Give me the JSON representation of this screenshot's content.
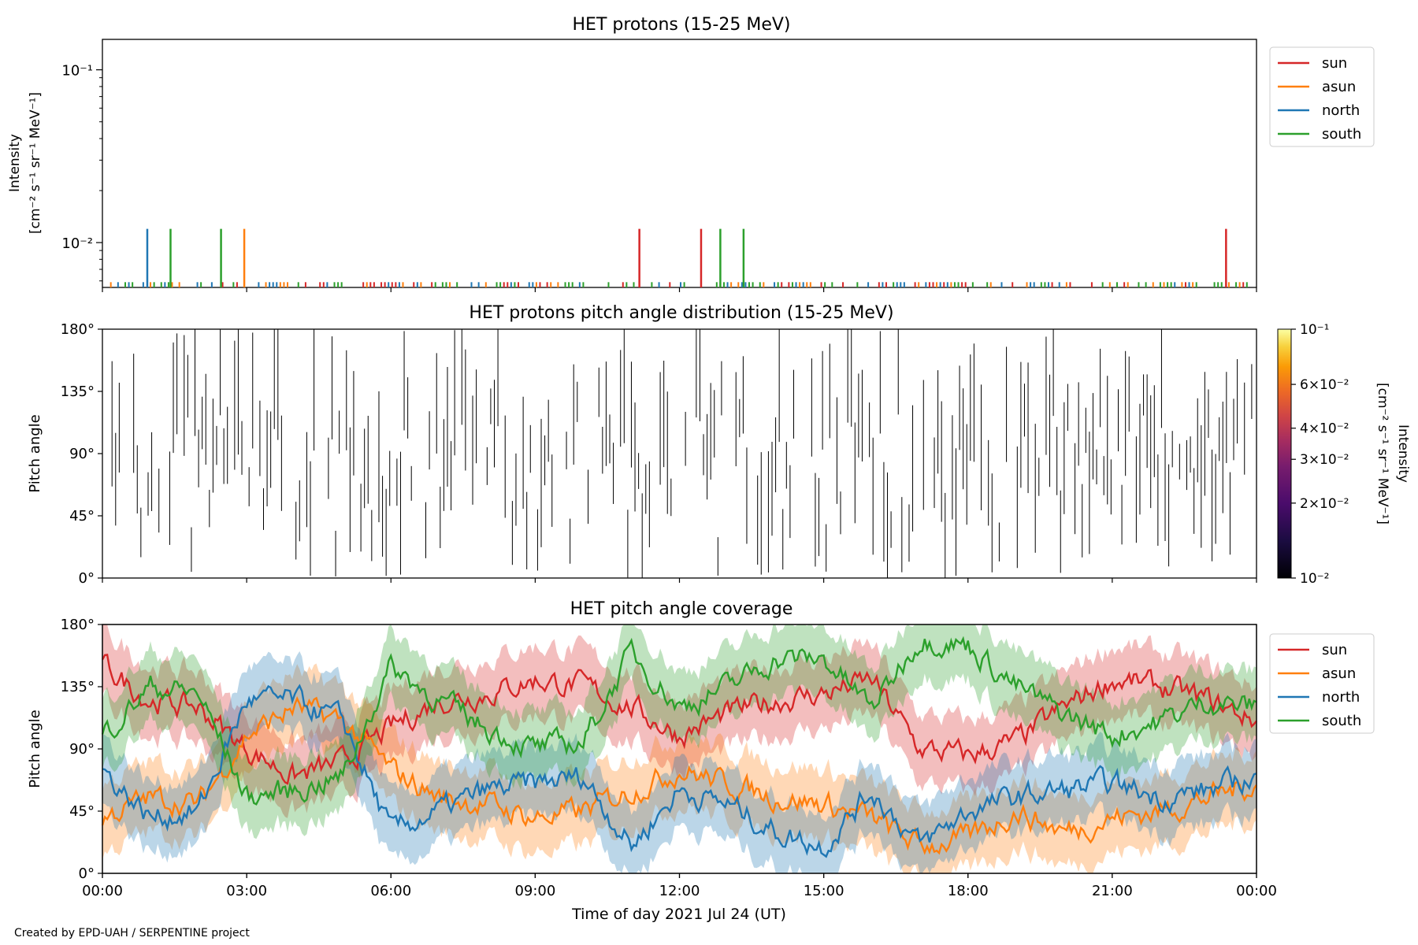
{
  "footer": {
    "credit": "Created by EPD-UAH / SERPENTINE project"
  },
  "chart_data": [
    {
      "type": "line",
      "title": "HET protons (15-25 MeV)",
      "xlabel": "",
      "ylabel_line1": "Intensity",
      "ylabel_line2": "[cm⁻² s⁻¹ sr⁻¹ MeV⁻¹]",
      "yscale": "log",
      "ylim": [
        0.0055,
        0.15
      ],
      "yticks": [
        0.01,
        0.1
      ],
      "ytick_labels": [
        "10⁻²",
        "10⁻¹"
      ],
      "xlim_hours": [
        0,
        24
      ],
      "xtick_labels": [
        "00:00",
        "03:00",
        "06:00",
        "09:00",
        "12:00",
        "15:00",
        "18:00",
        "21:00",
        "00:00"
      ],
      "legend": {
        "placement": "outside-right-top",
        "entries": [
          "sun",
          "asun",
          "north",
          "south"
        ]
      },
      "colors": {
        "sun": "#d62728",
        "asun": "#ff7f0e",
        "north": "#1f77b4",
        "south": "#2ca02c"
      },
      "baseline_intensity": 0.0059,
      "spikes": [
        {
          "series": "north",
          "time": "00:56",
          "value": 0.012
        },
        {
          "series": "south",
          "time": "01:25",
          "value": 0.012
        },
        {
          "series": "south",
          "time": "02:28",
          "value": 0.012
        },
        {
          "series": "asun",
          "time": "02:57",
          "value": 0.012
        },
        {
          "series": "sun",
          "time": "11:10",
          "value": 0.012
        },
        {
          "series": "sun",
          "time": "12:27",
          "value": 0.012
        },
        {
          "series": "south",
          "time": "12:51",
          "value": 0.012
        },
        {
          "series": "south",
          "time": "13:20",
          "value": 0.012
        },
        {
          "series": "sun",
          "time": "23:22",
          "value": 0.012
        }
      ]
    },
    {
      "type": "heatmap",
      "title": "HET protons pitch angle distribution (15-25 MeV)",
      "ylabel": "Pitch angle",
      "ylim": [
        0,
        180
      ],
      "ytick_labels": [
        "0°",
        "45°",
        "90°",
        "135°",
        "180°"
      ],
      "xlim_hours": [
        0,
        24
      ],
      "colormap": "inferno",
      "colorbar": {
        "label_line1": "Intensity",
        "label_line2": "[cm⁻² s⁻¹ sr⁻¹ MeV⁻¹]",
        "range": [
          0.01,
          0.1
        ],
        "scale": "log",
        "tick_labels": [
          "10⁻²",
          "2×10⁻²",
          "3×10⁻²",
          "4×10⁻²",
          "6×10⁻²",
          "10⁻¹"
        ],
        "tick_values": [
          0.01,
          0.02,
          0.03,
          0.04,
          0.06,
          0.1
        ]
      },
      "note": "sparse vertical segments: nearly all bins at the lowest intensity"
    },
    {
      "type": "area",
      "title": "HET pitch angle coverage",
      "xlabel": "Time of day 2021 Jul 24 (UT)",
      "ylabel": "Pitch angle",
      "ylim": [
        0,
        180
      ],
      "ytick_labels": [
        "0°",
        "45°",
        "90°",
        "135°",
        "180°"
      ],
      "xlim_hours": [
        0,
        24
      ],
      "xtick_labels": [
        "00:00",
        "03:00",
        "06:00",
        "09:00",
        "12:00",
        "15:00",
        "18:00",
        "21:00",
        "00:00"
      ],
      "legend": {
        "placement": "outside-right-top",
        "entries": [
          "sun",
          "asun",
          "north",
          "south"
        ]
      },
      "band_halfwidth_deg": 25,
      "series": [
        {
          "name": "sun",
          "color": "#d62728",
          "time_h": [
            0,
            1,
            2,
            3,
            4,
            5,
            6,
            7,
            8,
            9,
            10,
            11,
            12,
            13,
            14,
            15,
            16,
            17,
            18,
            19,
            20,
            21,
            22,
            23,
            24
          ],
          "values": [
            150,
            125,
            120,
            90,
            70,
            80,
            105,
            125,
            130,
            140,
            135,
            120,
            100,
            115,
            125,
            130,
            140,
            90,
            85,
            95,
            120,
            140,
            135,
            125,
            110
          ]
        },
        {
          "name": "asun",
          "color": "#ff7f0e",
          "time_h": [
            0,
            1,
            2,
            3,
            4,
            5,
            6,
            7,
            8,
            9,
            10,
            11,
            12,
            13,
            14,
            15,
            16,
            17,
            18,
            19,
            20,
            21,
            22,
            23,
            24
          ],
          "values": [
            40,
            55,
            50,
            100,
            120,
            110,
            75,
            55,
            50,
            40,
            45,
            60,
            75,
            65,
            55,
            50,
            40,
            20,
            25,
            45,
            30,
            40,
            45,
            55,
            65
          ]
        },
        {
          "name": "north",
          "color": "#1f77b4",
          "time_h": [
            0,
            1,
            2,
            3,
            4,
            5,
            6,
            7,
            8,
            9,
            10,
            11,
            12,
            13,
            14,
            15,
            16,
            17,
            18,
            19,
            20,
            21,
            22,
            23,
            24
          ],
          "values": [
            75,
            40,
            45,
            125,
            125,
            110,
            30,
            45,
            60,
            65,
            70,
            20,
            60,
            50,
            30,
            20,
            60,
            20,
            45,
            55,
            60,
            65,
            55,
            60,
            70
          ]
        },
        {
          "name": "south",
          "color": "#2ca02c",
          "time_h": [
            0,
            1,
            2,
            3,
            4,
            5,
            6,
            7,
            8,
            9,
            10,
            11,
            12,
            13,
            14,
            15,
            16,
            17,
            18,
            19,
            20,
            21,
            22,
            23,
            24
          ],
          "values": [
            100,
            135,
            130,
            55,
            60,
            70,
            150,
            125,
            105,
            90,
            95,
            160,
            120,
            135,
            155,
            155,
            120,
            170,
            165,
            135,
            115,
            100,
            110,
            125,
            120
          ]
        }
      ]
    }
  ]
}
